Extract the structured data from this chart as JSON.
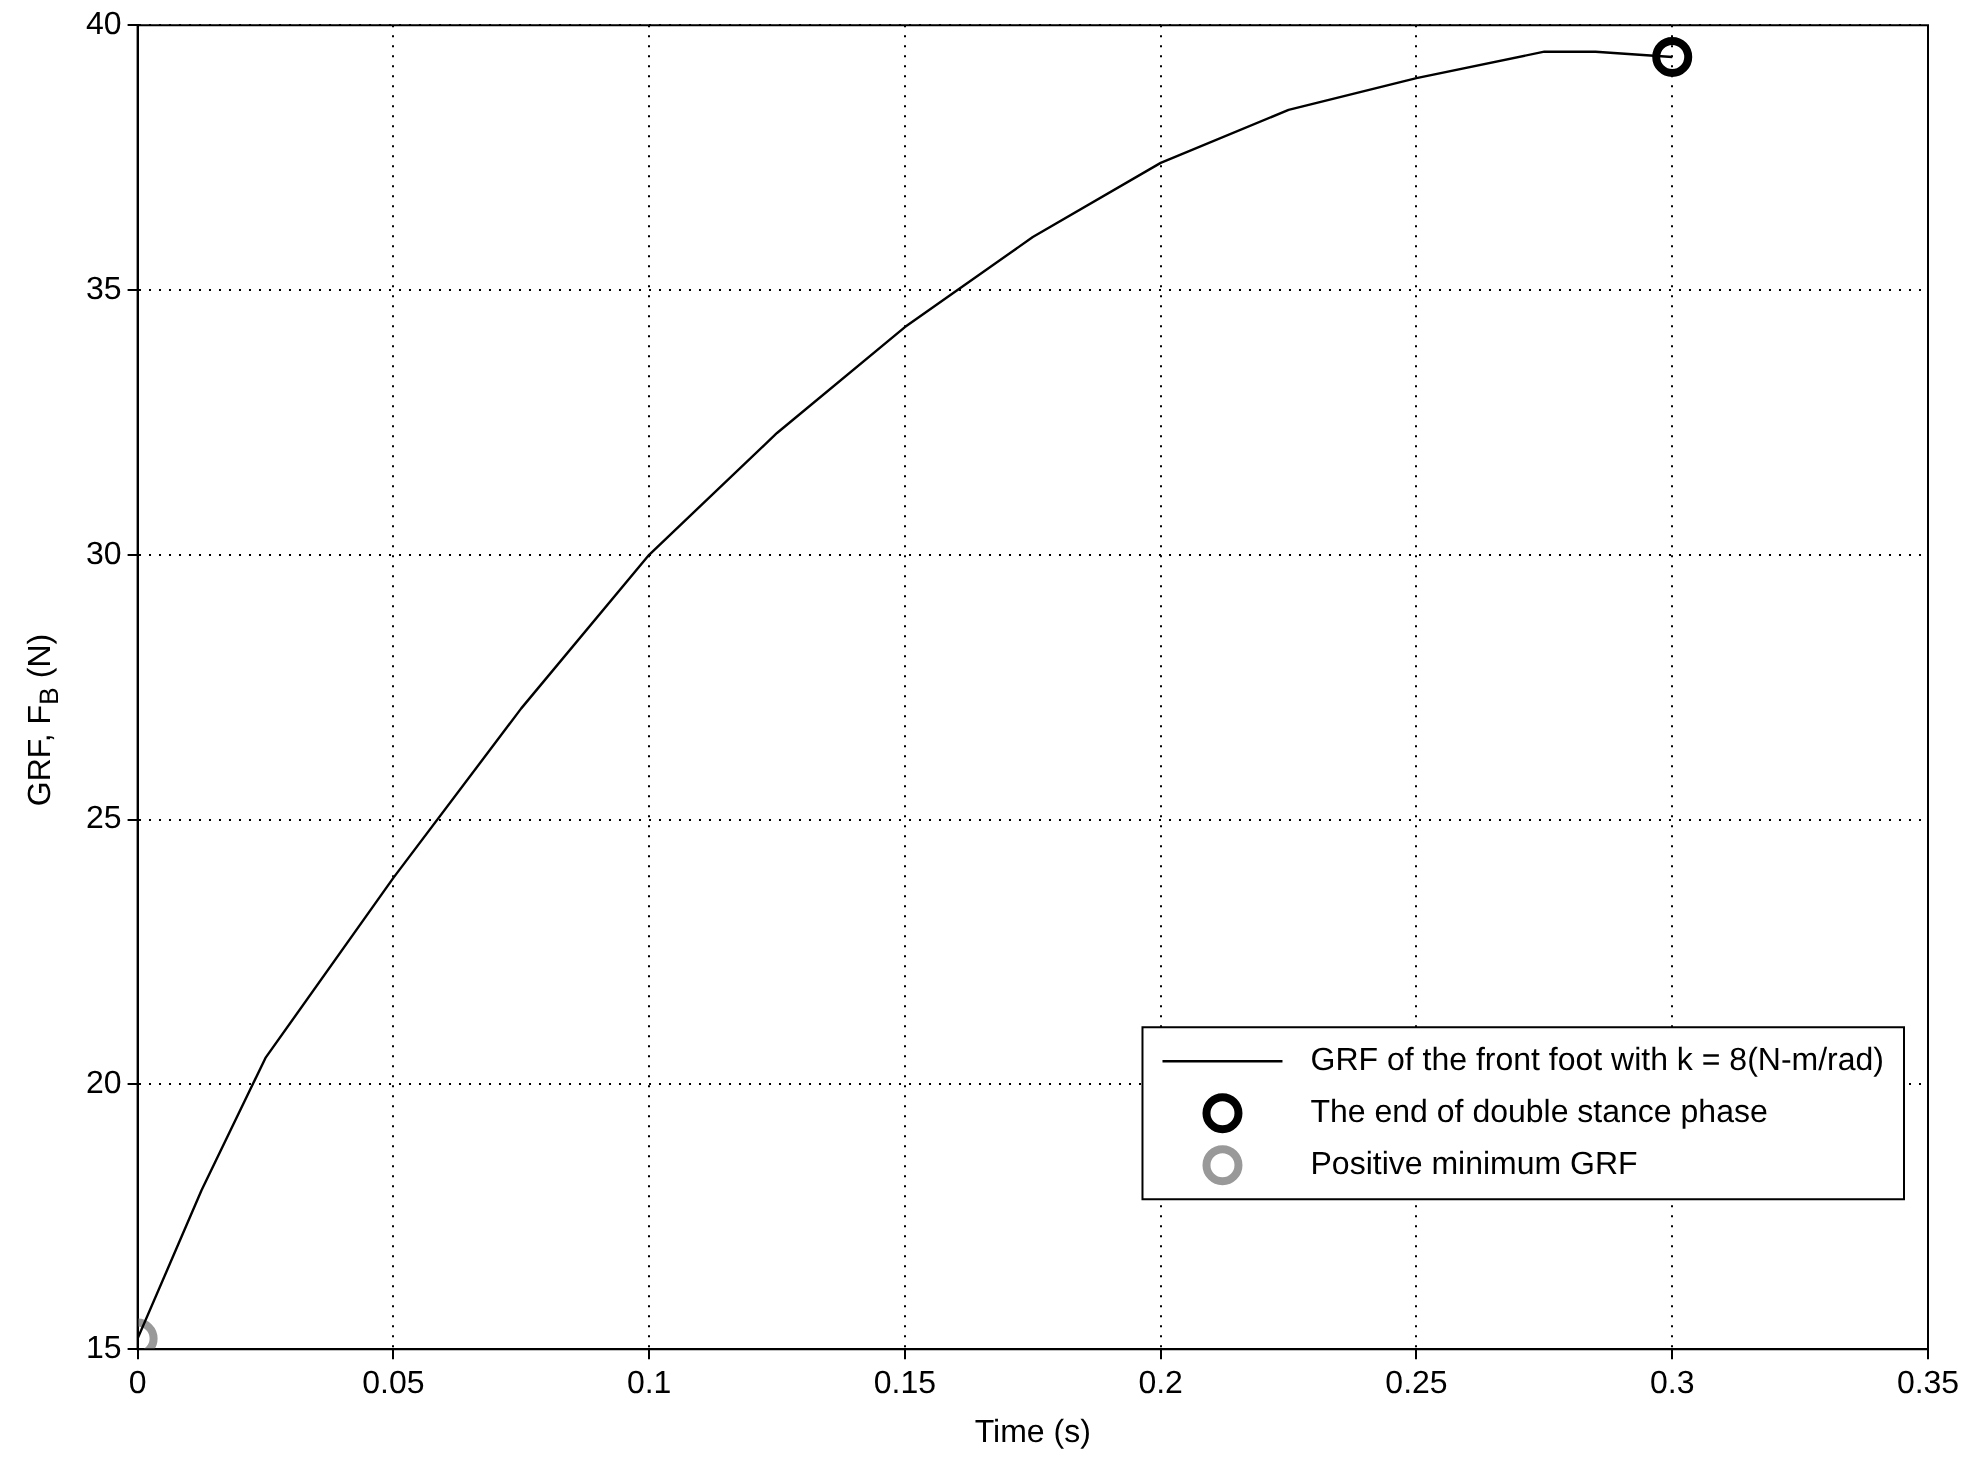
{
  "chart_data": {
    "type": "line",
    "xlabel": "Time (s)",
    "ylabel": "GRF, F$_{B}$ (N)",
    "xlim": [
      0,
      0.35
    ],
    "xticks": [
      0,
      0.05,
      0.1,
      0.15,
      0.2,
      0.25,
      0.3,
      0.35
    ],
    "ylim": [
      15,
      40
    ],
    "yticks": [
      15,
      20,
      25,
      30,
      35,
      40
    ],
    "grid": true,
    "legend": "bottom right",
    "series": [
      {
        "name": "GRF of the front foot with k = 8(N-m/rad)",
        "color": "#000000",
        "marker": "none",
        "x": [
          0,
          0.0125,
          0.025,
          0.05,
          0.075,
          0.1,
          0.125,
          0.15,
          0.175,
          0.2,
          0.225,
          0.25,
          0.275,
          0.285,
          0.3
        ],
        "values": [
          15.2,
          18.0,
          20.5,
          23.9,
          27.1,
          30.0,
          32.3,
          34.3,
          36.0,
          37.4,
          38.4,
          39.0,
          39.5,
          39.5,
          39.4
        ]
      },
      {
        "name": "The end of double stance phase",
        "type": "scatter",
        "color": "#000000",
        "marker": "circle",
        "x": [
          0.3
        ],
        "values": [
          39.4
        ]
      },
      {
        "name": "Positive minimum GRF",
        "type": "scatter",
        "color": "#999999",
        "marker": "circle",
        "x": [
          0
        ],
        "values": [
          15.2
        ]
      }
    ]
  }
}
